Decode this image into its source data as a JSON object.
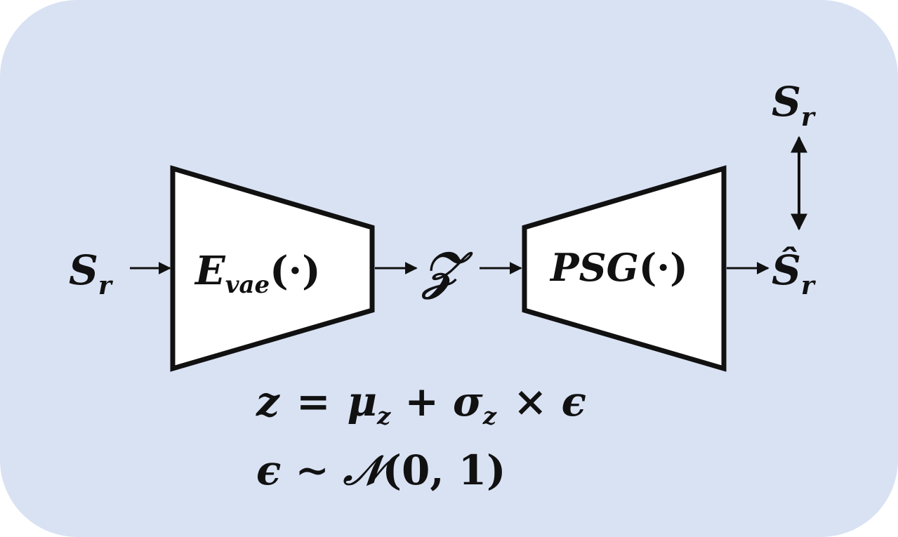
{
  "diagram": {
    "background_color": "#d9e2f3",
    "input_label": {
      "base": "S",
      "sub": "r"
    },
    "encoder": {
      "name": "E",
      "sub": "vae",
      "arg": "(·)"
    },
    "latent_label": "𝒵",
    "generator": {
      "name": "PSG",
      "arg": "(·)"
    },
    "output_label": {
      "base": "Ŝ",
      "sub": "r"
    },
    "target_label": {
      "base": "S",
      "sub": "r"
    },
    "equation_1": {
      "lhs": "z",
      "eq": "=",
      "mu": "μ",
      "mu_sub": "z",
      "plus": "+",
      "sigma": "σ",
      "sigma_sub": "z",
      "times": "×",
      "eps": "ϵ"
    },
    "equation_2": {
      "eps": "ϵ",
      "sim": "∼",
      "dist": "𝒩",
      "args": "(0, 1)"
    }
  }
}
